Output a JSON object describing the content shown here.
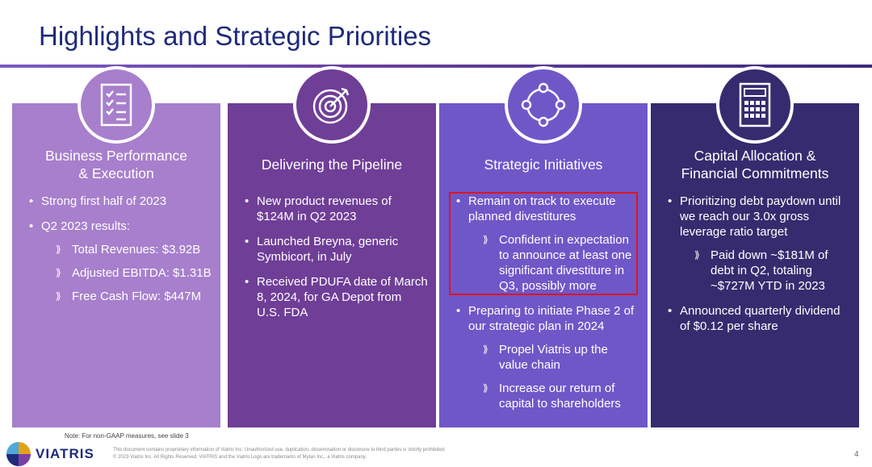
{
  "header": {
    "title": "Highlights and Strategic Priorities"
  },
  "panels": [
    {
      "heading": [
        "Business Performance",
        "& Execution"
      ],
      "icon": "checklist-icon",
      "bullets": [
        {
          "text": "Strong first half of 2023",
          "subs": []
        },
        {
          "text": "Q2 2023 results:",
          "subs": [
            "Total Revenues: $3.92B",
            "Adjusted EBITDA: $1.31B",
            "Free Cash Flow: $447M"
          ]
        }
      ]
    },
    {
      "heading": [
        "Delivering the Pipeline"
      ],
      "icon": "target-icon",
      "bullets": [
        {
          "text": "New product revenues of $124M in Q2 2023",
          "subs": []
        },
        {
          "text": "Launched Breyna, generic Symbicort, in July",
          "subs": []
        },
        {
          "text": "Received PDUFA date of March 8, 2024, for GA Depot from U.S. FDA",
          "subs": []
        }
      ]
    },
    {
      "heading": [
        "Strategic Initiatives"
      ],
      "icon": "cycle-icon",
      "bullets": [
        {
          "text": "Remain on track to execute planned divestitures",
          "subs": [
            "Confident in expectation to announce at least one significant divestiture in Q3, possibly more"
          ]
        },
        {
          "text": "Preparing to initiate Phase 2 of our strategic plan in 2024",
          "subs": [
            "Propel Viatris up the value chain",
            "Increase our return of capital to shareholders"
          ]
        }
      ]
    },
    {
      "heading": [
        "Capital Allocation &",
        "Financial Commitments"
      ],
      "icon": "calculator-icon",
      "bullets": [
        {
          "text": "Prioritizing debt paydown until we reach our 3.0x gross leverage ratio target",
          "subs": [
            "Paid down ~$181M of debt in Q2, totaling ~$727M YTD in 2023"
          ]
        },
        {
          "text": "Announced quarterly dividend of $0.12 per share",
          "subs": []
        }
      ]
    }
  ],
  "footer": {
    "note": "Note: For non-GAAP measures, see slide 3",
    "legal_line1": "This document contains proprietary information of Viatris Inc. Unauthorized use, duplication, dissemination or disclosure to third parties is strictly prohibited.",
    "legal_line2": "© 2023 Viatris Inc. All Rights Reserved. VIATRIS and the Viatris Logo are trademarks of Mylan Inc., a Viatris company.",
    "logo_text": "VIATRIS",
    "page_number": "4"
  }
}
